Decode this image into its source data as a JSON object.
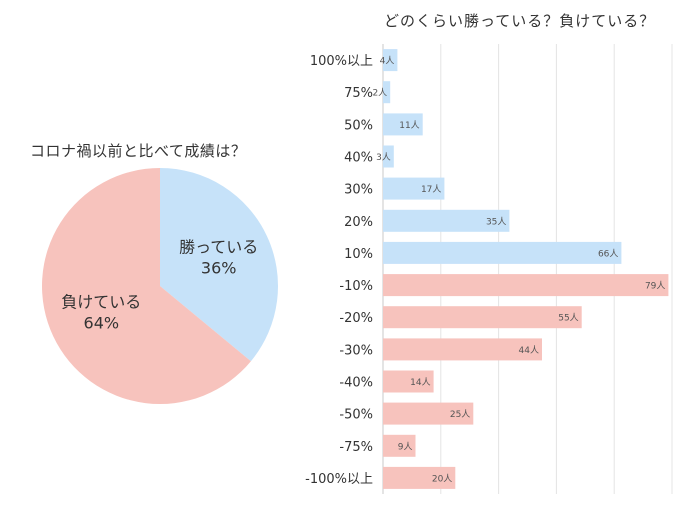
{
  "chart_data": [
    {
      "type": "pie",
      "title": "コロナ禍以前と比べて成績は？",
      "slices": [
        {
          "label": "勝っている",
          "value": 36,
          "value_label": "36%",
          "color": "#c6e2f9"
        },
        {
          "label": "負けている",
          "value": 64,
          "value_label": "64%",
          "color": "#f7c3bd"
        }
      ]
    },
    {
      "type": "bar",
      "orientation": "horizontal",
      "title": "どのくらい勝っている？負けている？",
      "categories": [
        "100%以上",
        "75%",
        "50%",
        "40%",
        "30%",
        "20%",
        "10%",
        "-10%",
        "-20%",
        "-30%",
        "-40%",
        "-50%",
        "-75%",
        "-100%以上"
      ],
      "values": [
        4,
        2,
        11,
        3,
        17,
        35,
        66,
        79,
        55,
        44,
        14,
        25,
        9,
        20
      ],
      "value_labels": [
        "4人",
        "2人",
        "11人",
        "3人",
        "17人",
        "35人",
        "66人",
        "79人",
        "55人",
        "44人",
        "14人",
        "25人",
        "9人",
        "20人"
      ],
      "xlim": [
        0,
        80
      ],
      "grid": true,
      "colors": {
        "positive": "#c6e2f9",
        "negative": "#f7c3bd"
      }
    }
  ]
}
